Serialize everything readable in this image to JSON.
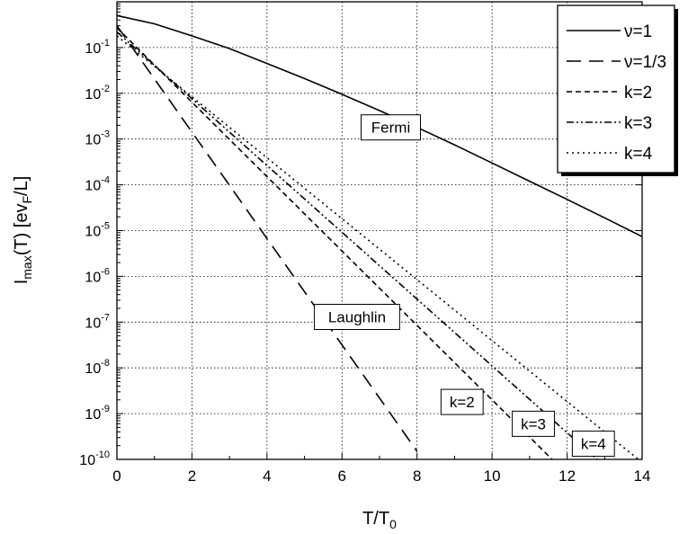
{
  "chart_data": {
    "type": "line",
    "xlabel": "T/T",
    "xlabel_sub": "0",
    "ylabel_parts": {
      "lead": "I",
      "sub1": "max",
      "mid": "(T)  [ev",
      "sub2": "F",
      "tail": "/L]"
    },
    "xlim": [
      0,
      14
    ],
    "ylog": true,
    "ylim_exp": [
      -10,
      0
    ],
    "grid": true,
    "x_ticks": [
      0,
      2,
      4,
      6,
      8,
      10,
      12,
      14
    ],
    "y_tick_exponents": [
      -10,
      -9,
      -8,
      -7,
      -6,
      -5,
      -4,
      -3,
      -2,
      -1
    ],
    "legend_position": "top-right",
    "series": [
      {
        "name": "ν=1",
        "style": "solid",
        "x": [
          0,
          1,
          2,
          3,
          4,
          5,
          6,
          7,
          8,
          9,
          10,
          11,
          12,
          13,
          14
        ],
        "y": [
          0.5,
          0.33,
          0.18,
          0.095,
          0.045,
          0.021,
          0.0095,
          0.0042,
          0.0018,
          0.00075,
          0.0003,
          0.00012,
          4.8e-05,
          1.9e-05,
          7.4e-06
        ]
      },
      {
        "name": "ν=1/3",
        "style": "longdash",
        "x": [
          0,
          8
        ],
        "y": [
          0.3,
          1.5e-10
        ]
      },
      {
        "name": "k=2",
        "style": "dash",
        "x": [
          0,
          11.6
        ],
        "y": [
          0.27,
          1e-10
        ]
      },
      {
        "name": "k=3",
        "style": "dashdotdot",
        "x": [
          0,
          12.8
        ],
        "y": [
          0.22,
          1e-10
        ]
      },
      {
        "name": "k=4",
        "style": "dot",
        "x": [
          0,
          13.9
        ],
        "y": [
          0.18,
          1e-10
        ]
      }
    ],
    "annotations": [
      {
        "text": "Fermi",
        "x": 7.3,
        "y": 0.0018
      },
      {
        "text": "Laughlin",
        "x": 6.4,
        "y": 1.3e-07
      },
      {
        "text": "k=2",
        "x": 9.2,
        "y": 1.8e-09
      },
      {
        "text": "k=3",
        "x": 11.1,
        "y": 6e-10
      },
      {
        "text": "k=4",
        "x": 12.7,
        "y": 2.2e-10
      }
    ]
  }
}
